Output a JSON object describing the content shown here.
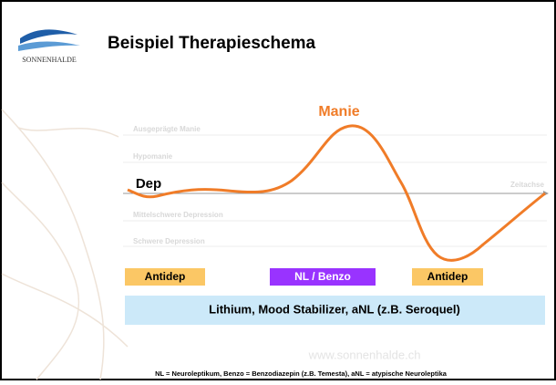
{
  "logo": "SONNENHALDE",
  "title": "Beispiel Therapieschema",
  "levels": [
    "Ausgeprägte Manie",
    "Hypomanie",
    "Mittelschwere Depression",
    "Schwere Depression"
  ],
  "axis_label": "Zeitachse",
  "peak_label": "Manie",
  "start_label": "Dep",
  "boxes": [
    "Antidep",
    "NL / Benzo",
    "Antidep"
  ],
  "base_box": "Lithium, Mood Stabilizer, aNL (z.B. Seroquel)",
  "watermark": "www.sonnenhalde.ch",
  "footnote": "NL = Neuroleptikum, Benzo = Benzodiazepin (z.B. Temesta), aNL = atypische Neuroleptika"
}
